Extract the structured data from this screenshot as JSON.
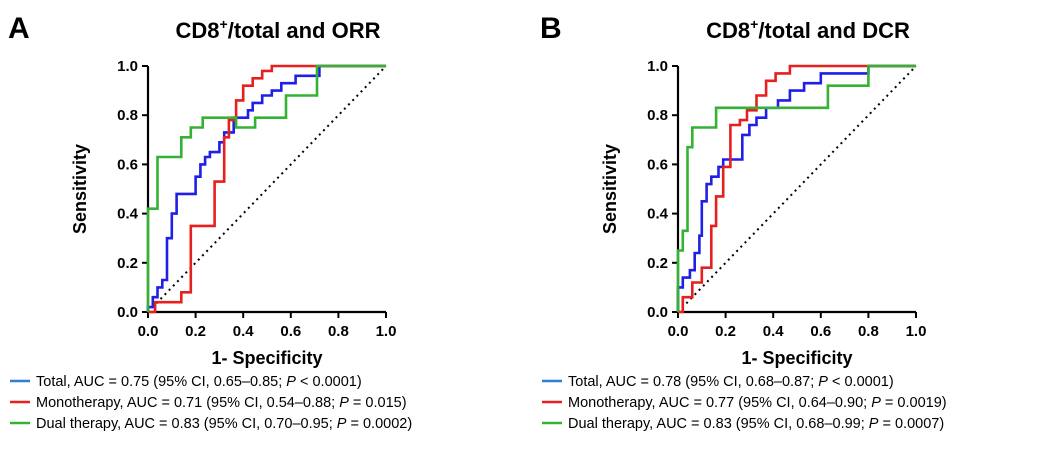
{
  "colors": {
    "total": "#1f1fe6",
    "monotherapy": "#e61f1f",
    "dual": "#33b233",
    "legend_total": "#2f7fd0"
  },
  "chart_data": [
    {
      "panel": "A",
      "type": "line",
      "title_main": "CD8",
      "title_sup": "+",
      "title_rest": "/total and ORR",
      "xlabel": "1- Specificity",
      "ylabel": "Sensitivity",
      "xlim": [
        0,
        1
      ],
      "ylim": [
        0,
        1
      ],
      "xticks": [
        "0.0",
        "0.2",
        "0.4",
        "0.6",
        "0.8",
        "1.0"
      ],
      "yticks": [
        "0.0",
        "0.2",
        "0.4",
        "0.6",
        "0.8",
        "1.0"
      ],
      "reference_line": true,
      "series": [
        {
          "key": "total",
          "x": [
            0.0,
            0.0,
            0.02,
            0.02,
            0.04,
            0.04,
            0.06,
            0.06,
            0.08,
            0.08,
            0.1,
            0.1,
            0.12,
            0.12,
            0.14,
            0.14,
            0.2,
            0.2,
            0.22,
            0.22,
            0.24,
            0.24,
            0.26,
            0.26,
            0.3,
            0.3,
            0.32,
            0.32,
            0.36,
            0.36,
            0.42,
            0.42,
            0.44,
            0.44,
            0.48,
            0.48,
            0.52,
            0.52,
            0.56,
            0.56,
            0.62,
            0.62,
            0.72,
            0.72,
            1.0
          ],
          "y": [
            0.0,
            0.02,
            0.02,
            0.06,
            0.06,
            0.1,
            0.1,
            0.13,
            0.13,
            0.3,
            0.3,
            0.4,
            0.4,
            0.48,
            0.48,
            0.48,
            0.48,
            0.55,
            0.55,
            0.6,
            0.6,
            0.63,
            0.63,
            0.65,
            0.65,
            0.69,
            0.69,
            0.73,
            0.73,
            0.79,
            0.79,
            0.82,
            0.82,
            0.85,
            0.85,
            0.88,
            0.88,
            0.9,
            0.9,
            0.93,
            0.93,
            0.96,
            0.96,
            1.0,
            1.0
          ]
        },
        {
          "key": "monotherapy",
          "x": [
            0.0,
            0.03,
            0.03,
            0.14,
            0.14,
            0.18,
            0.18,
            0.28,
            0.28,
            0.32,
            0.32,
            0.34,
            0.34,
            0.37,
            0.37,
            0.4,
            0.4,
            0.44,
            0.44,
            0.48,
            0.48,
            0.52,
            0.52,
            1.0
          ],
          "y": [
            0.0,
            0.0,
            0.04,
            0.04,
            0.08,
            0.08,
            0.35,
            0.35,
            0.53,
            0.53,
            0.71,
            0.71,
            0.78,
            0.78,
            0.86,
            0.86,
            0.92,
            0.92,
            0.95,
            0.95,
            0.98,
            0.98,
            1.0,
            1.0
          ]
        },
        {
          "key": "dual",
          "x": [
            0.0,
            0.0,
            0.04,
            0.04,
            0.14,
            0.14,
            0.18,
            0.18,
            0.23,
            0.23,
            0.37,
            0.37,
            0.45,
            0.45,
            0.58,
            0.58,
            0.71,
            0.71,
            1.0
          ],
          "y": [
            0.0,
            0.42,
            0.42,
            0.63,
            0.63,
            0.71,
            0.71,
            0.75,
            0.75,
            0.79,
            0.79,
            0.75,
            0.75,
            0.79,
            0.79,
            0.88,
            0.88,
            1.0,
            1.0
          ]
        }
      ],
      "legend": [
        {
          "key": "legend_total",
          "pre": "Total, AUC = 0.75 (95% CI, 0.65–0.85; ",
          "p": "P",
          "post": " < 0.0001)"
        },
        {
          "key": "monotherapy",
          "pre": "Monotherapy, AUC = 0.71 (95% CI, 0.54–0.88; ",
          "p": "P",
          "post": " = 0.015)"
        },
        {
          "key": "dual",
          "pre": "Dual therapy, AUC = 0.83 (95% CI, 0.70–0.95; ",
          "p": "P",
          "post": " = 0.0002)"
        }
      ]
    },
    {
      "panel": "B",
      "type": "line",
      "title_main": "CD8",
      "title_sup": "+",
      "title_rest": "/total and DCR",
      "xlabel": "1- Specificity",
      "ylabel": "Sensitivity",
      "xlim": [
        0,
        1
      ],
      "ylim": [
        0,
        1
      ],
      "xticks": [
        "0.0",
        "0.2",
        "0.4",
        "0.6",
        "0.8",
        "1.0"
      ],
      "yticks": [
        "0.0",
        "0.2",
        "0.4",
        "0.6",
        "0.8",
        "1.0"
      ],
      "reference_line": true,
      "series": [
        {
          "key": "total",
          "x": [
            0.0,
            0.0,
            0.02,
            0.02,
            0.05,
            0.05,
            0.07,
            0.07,
            0.09,
            0.09,
            0.1,
            0.1,
            0.12,
            0.12,
            0.14,
            0.14,
            0.17,
            0.17,
            0.19,
            0.19,
            0.22,
            0.22,
            0.27,
            0.27,
            0.3,
            0.3,
            0.33,
            0.33,
            0.37,
            0.37,
            0.42,
            0.42,
            0.47,
            0.47,
            0.53,
            0.53,
            0.6,
            0.6,
            0.8,
            0.8,
            1.0
          ],
          "y": [
            0.0,
            0.1,
            0.1,
            0.14,
            0.14,
            0.17,
            0.17,
            0.24,
            0.24,
            0.31,
            0.31,
            0.45,
            0.45,
            0.52,
            0.52,
            0.55,
            0.55,
            0.59,
            0.59,
            0.62,
            0.62,
            0.62,
            0.62,
            0.72,
            0.72,
            0.76,
            0.76,
            0.79,
            0.79,
            0.83,
            0.83,
            0.86,
            0.86,
            0.9,
            0.9,
            0.93,
            0.93,
            0.97,
            0.97,
            1.0,
            1.0
          ]
        },
        {
          "key": "monotherapy",
          "x": [
            0.0,
            0.02,
            0.02,
            0.06,
            0.06,
            0.1,
            0.1,
            0.14,
            0.14,
            0.16,
            0.16,
            0.19,
            0.19,
            0.22,
            0.22,
            0.26,
            0.26,
            0.29,
            0.29,
            0.33,
            0.33,
            0.37,
            0.37,
            0.41,
            0.41,
            0.47,
            0.47,
            1.0
          ],
          "y": [
            0.0,
            0.0,
            0.06,
            0.06,
            0.12,
            0.12,
            0.18,
            0.18,
            0.35,
            0.35,
            0.47,
            0.47,
            0.59,
            0.59,
            0.76,
            0.76,
            0.78,
            0.78,
            0.82,
            0.82,
            0.88,
            0.88,
            0.94,
            0.94,
            0.97,
            0.97,
            1.0,
            1.0
          ]
        },
        {
          "key": "dual",
          "x": [
            0.0,
            0.0,
            0.02,
            0.02,
            0.04,
            0.04,
            0.06,
            0.06,
            0.08,
            0.08,
            0.16,
            0.16,
            0.63,
            0.63,
            0.8,
            0.8,
            1.0
          ],
          "y": [
            0.0,
            0.25,
            0.25,
            0.33,
            0.33,
            0.67,
            0.67,
            0.75,
            0.75,
            0.75,
            0.75,
            0.83,
            0.83,
            0.92,
            0.92,
            1.0,
            1.0
          ]
        }
      ],
      "legend": [
        {
          "key": "legend_total",
          "pre": "Total, AUC = 0.78 (95% CI, 0.68–0.87; ",
          "p": "P",
          "post": " < 0.0001)"
        },
        {
          "key": "monotherapy",
          "pre": "Monotherapy, AUC = 0.77 (95% CI, 0.64–0.90; ",
          "p": "P",
          "post": " = 0.0019)"
        },
        {
          "key": "dual",
          "pre": "Dual therapy, AUC = 0.83 (95% CI, 0.68–0.99; ",
          "p": "P",
          "post": " = 0.0007)"
        }
      ]
    }
  ]
}
